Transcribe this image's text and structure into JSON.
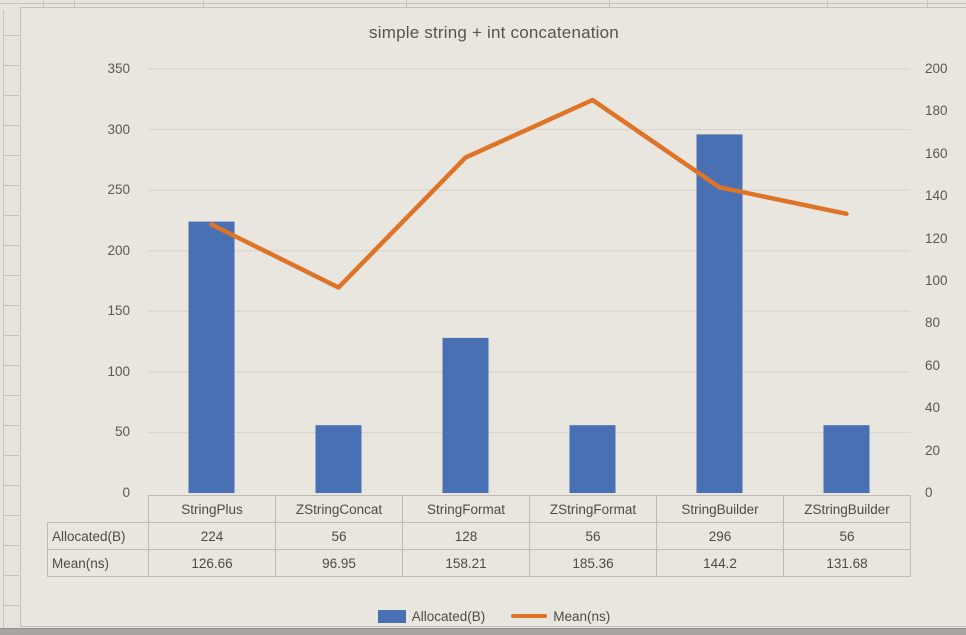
{
  "chart_data": {
    "type": "combo-bar-line",
    "title": "simple string + int concatenation",
    "categories": [
      "StringPlus",
      "ZStringConcat",
      "StringFormat",
      "ZStringFormat",
      "StringBuilder",
      "ZStringBuilder"
    ],
    "series": [
      {
        "name": "Allocated(B)",
        "type": "bar",
        "axis": "left",
        "color": "#4a70b4",
        "values": [
          224,
          56,
          128,
          56,
          296,
          56
        ]
      },
      {
        "name": "Mean(ns)",
        "type": "line",
        "axis": "right",
        "color": "#dd7428",
        "values": [
          126.66,
          96.95,
          158.21,
          185.36,
          144.2,
          131.68
        ]
      }
    ],
    "left_axis": {
      "min": 0,
      "max": 350,
      "step": 50,
      "ticks": [
        "0",
        "50",
        "100",
        "150",
        "200",
        "250",
        "300",
        "350"
      ]
    },
    "right_axis": {
      "min": 0,
      "max": 200,
      "step": 20,
      "ticks": [
        "0",
        "20",
        "40",
        "60",
        "80",
        "100",
        "120",
        "140",
        "160",
        "180",
        "200"
      ]
    },
    "legend_position": "bottom",
    "grid": true
  },
  "table": {
    "rows": [
      {
        "label": "Allocated(B)",
        "values": [
          "224",
          "56",
          "128",
          "56",
          "296",
          "56"
        ]
      },
      {
        "label": "Mean(ns)",
        "values": [
          "126.66",
          "96.95",
          "158.21",
          "185.36",
          "144.2",
          "131.68"
        ]
      }
    ]
  },
  "colors": {
    "background": "#e8e4dd",
    "chart_background": "#e9e5df",
    "gridline": "#d9d5cf",
    "bar": "#4a70b4",
    "line": "#dd7428",
    "text": "#57534d",
    "table_border": "#bfbbb5",
    "bottom_bar": "#a8a5a0"
  }
}
